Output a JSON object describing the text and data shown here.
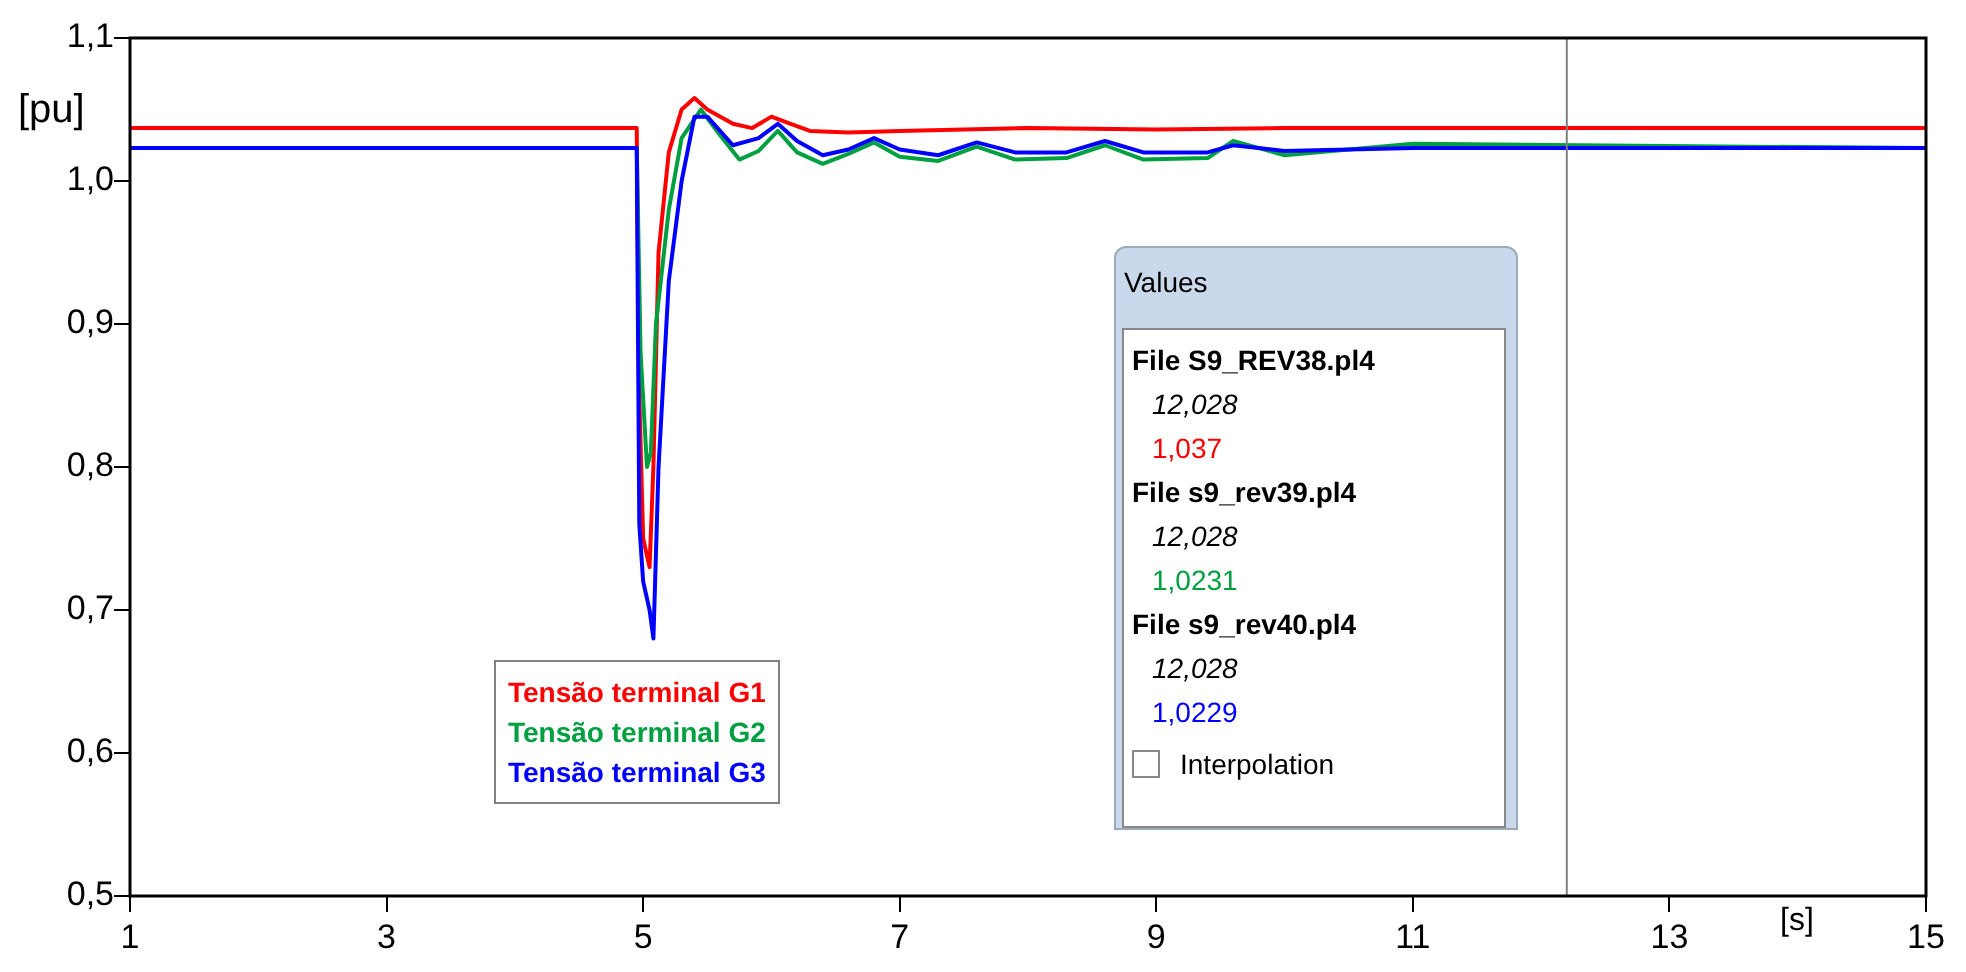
{
  "chart_data": {
    "type": "line",
    "xlabel": "[s]",
    "ylabel": "[pu]",
    "xlim": [
      1,
      15
    ],
    "xticks": [
      1,
      3,
      5,
      7,
      9,
      11,
      13,
      15
    ],
    "ylim": [
      0.5,
      1.1
    ],
    "yticks": [
      {
        "value": 0.5,
        "label": "0,5"
      },
      {
        "value": 0.6,
        "label": "0,6"
      },
      {
        "value": 0.7,
        "label": "0,7"
      },
      {
        "value": 0.8,
        "label": "0,8"
      },
      {
        "value": 0.9,
        "label": "0,9"
      },
      {
        "value": 1.0,
        "label": "1,0"
      },
      {
        "value": 1.1,
        "label": "1,1"
      }
    ],
    "grid": false,
    "legend": "bottom",
    "marker": "none",
    "line_style": "solid",
    "ref_lines": [
      {
        "axis": "x",
        "value": 12.2,
        "color": "#808080"
      }
    ],
    "annotations": [
      "Values",
      "File S9_REV38.pl4",
      "12,028",
      "1,037",
      "File s9_rev39.pl4",
      "12,028",
      "1,0231",
      "File s9_rev40.pl4",
      "12,028",
      "1,0229",
      "Interpolation"
    ],
    "series": [
      {
        "name": "Tensão terminal G1",
        "color": "#ff0000",
        "x": [
          1,
          4.95,
          4.97,
          5.0,
          5.05,
          5.08,
          5.12,
          5.2,
          5.3,
          5.4,
          5.5,
          5.7,
          5.85,
          6.0,
          6.15,
          6.3,
          6.6,
          7,
          8,
          9,
          10,
          12,
          15
        ],
        "values": [
          1.037,
          1.037,
          0.85,
          0.75,
          0.73,
          0.8,
          0.95,
          1.02,
          1.05,
          1.058,
          1.05,
          1.04,
          1.037,
          1.045,
          1.04,
          1.035,
          1.034,
          1.035,
          1.037,
          1.036,
          1.037,
          1.037,
          1.037
        ]
      },
      {
        "name": "Tensão terminal G2",
        "color": "#00a040",
        "x": [
          1,
          4.95,
          4.98,
          5.03,
          5.06,
          5.1,
          5.2,
          5.3,
          5.45,
          5.6,
          5.75,
          5.9,
          6.05,
          6.2,
          6.4,
          6.6,
          6.8,
          7.0,
          7.3,
          7.6,
          7.9,
          8.3,
          8.6,
          8.9,
          9.4,
          9.6,
          10,
          11,
          15
        ],
        "values": [
          1.023,
          1.023,
          0.88,
          0.8,
          0.81,
          0.9,
          0.98,
          1.03,
          1.05,
          1.032,
          1.015,
          1.021,
          1.035,
          1.02,
          1.012,
          1.019,
          1.027,
          1.017,
          1.014,
          1.024,
          1.015,
          1.016,
          1.025,
          1.015,
          1.016,
          1.028,
          1.018,
          1.026,
          1.023
        ]
      },
      {
        "name": "Tensão terminal G3",
        "color": "#0000ff",
        "x": [
          1,
          4.95,
          4.97,
          5.0,
          5.05,
          5.08,
          5.12,
          5.2,
          5.3,
          5.4,
          5.5,
          5.7,
          5.9,
          6.05,
          6.2,
          6.4,
          6.6,
          6.8,
          7.0,
          7.3,
          7.6,
          7.9,
          8.3,
          8.6,
          8.9,
          9.4,
          9.6,
          10,
          11,
          15
        ],
        "values": [
          1.023,
          1.023,
          0.76,
          0.72,
          0.7,
          0.68,
          0.8,
          0.93,
          1.0,
          1.045,
          1.045,
          1.025,
          1.03,
          1.04,
          1.028,
          1.018,
          1.022,
          1.03,
          1.022,
          1.018,
          1.027,
          1.02,
          1.02,
          1.028,
          1.02,
          1.02,
          1.025,
          1.021,
          1.023,
          1.023
        ]
      }
    ]
  }
}
